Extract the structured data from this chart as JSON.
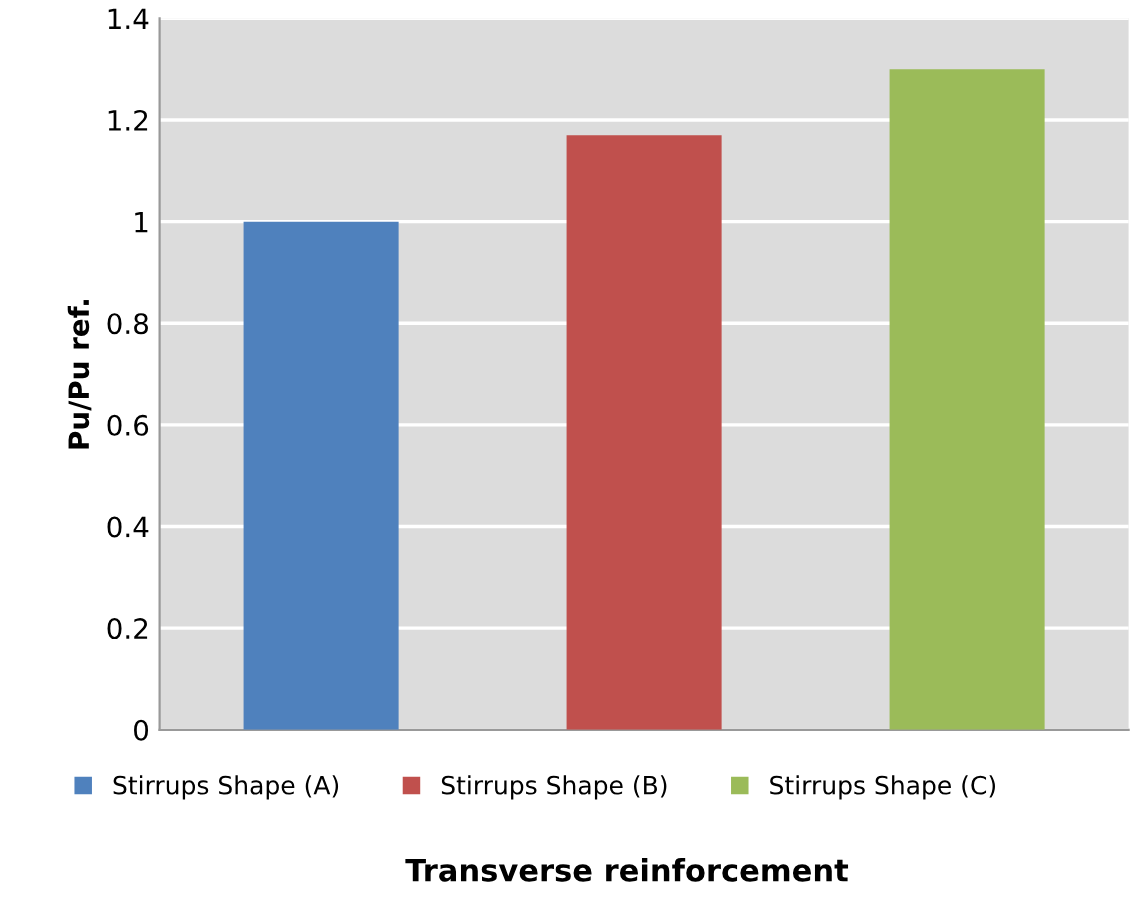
{
  "chart_data": {
    "type": "bar",
    "xlabel": "Transverse reinforcement",
    "ylabel": "Pu/Pu ref.",
    "categories": [
      null,
      null,
      null
    ],
    "series": [
      {
        "name": "Stirrups Shape (A)",
        "color": "#4f81bd",
        "values": [
          1.0,
          null,
          null
        ]
      },
      {
        "name": "Stirrups Shape (B)",
        "color": "#c0504d",
        "values": [
          null,
          1.17,
          null
        ]
      },
      {
        "name": "Stirrups Shape (C)",
        "color": "#9bbb59",
        "values": [
          null,
          null,
          1.3
        ]
      }
    ],
    "ylim": [
      0,
      1.4
    ],
    "yticks": [
      0,
      0.2,
      0.4,
      0.6,
      0.8,
      1,
      1.2,
      1.4
    ],
    "grid": "y",
    "legend": "bottom"
  }
}
